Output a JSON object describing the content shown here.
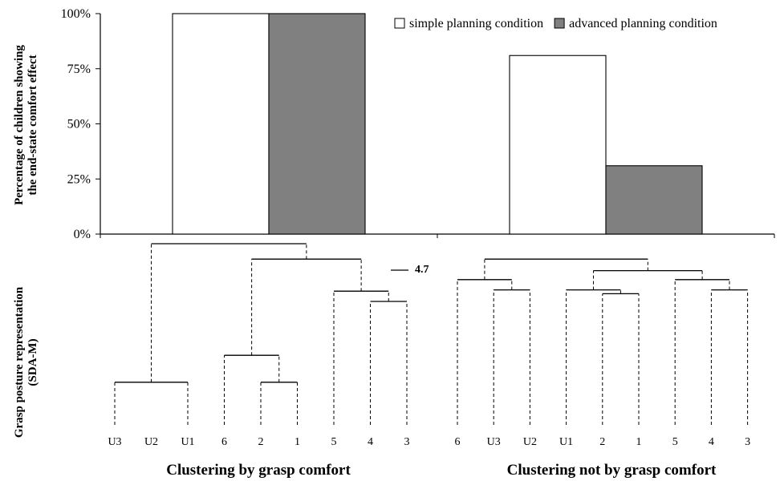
{
  "chart_data": [
    {
      "type": "bar",
      "categories": [
        "Clustering by grasp comfort",
        "Clustering not by grasp comfort"
      ],
      "series": [
        {
          "name": "simple planning condition",
          "color": "#ffffff",
          "values": [
            100,
            81
          ]
        },
        {
          "name": "advanced planning condition",
          "color": "#808080",
          "values": [
            100,
            31
          ]
        }
      ],
      "ylabel_lines": [
        "Percentage of children showing",
        "the end-state comfort effect"
      ],
      "yticks": [
        "0%",
        "25%",
        "50%",
        "75%",
        "100%"
      ],
      "ylim": [
        0,
        100
      ],
      "legend_position": "top-right",
      "grid": false
    },
    {
      "type": "dendrogram",
      "ylabel_lines": [
        "Grasp posture representation",
        "(SDA-M)"
      ],
      "threshold_label": "4.7",
      "panels": [
        {
          "title": "Clustering by grasp comfort",
          "leaves": [
            "U3",
            "U2",
            "U1",
            "6",
            "2",
            "1",
            "5",
            "4",
            "3"
          ],
          "merges": [
            {
              "a": 4,
              "b": 5,
              "h": 0.22
            },
            {
              "a": 0,
              "b": 2,
              "h": 0.22
            },
            {
              "a": 3,
              "b": 4.5,
              "h": 0.43
            },
            {
              "a": 7,
              "b": 8,
              "h": 0.85
            },
            {
              "a": 6,
              "b": 7.5,
              "h": 0.93
            },
            {
              "a": 3.75,
              "b": 6.75,
              "h": 1.18
            },
            {
              "a": 1,
              "b": 5.25,
              "h": 1.3
            }
          ]
        },
        {
          "title": "Clustering not by grasp comfort",
          "leaves": [
            "6",
            "U3",
            "U2",
            "U1",
            "2",
            "1",
            "5",
            "4",
            "3"
          ],
          "merges": [
            {
              "a": 4,
              "b": 5,
              "h": 0.91
            },
            {
              "a": 1,
              "b": 2,
              "h": 0.94
            },
            {
              "a": 7,
              "b": 8,
              "h": 0.94
            },
            {
              "a": 3,
              "b": 4.5,
              "h": 0.94
            },
            {
              "a": 0,
              "b": 1.5,
              "h": 1.02
            },
            {
              "a": 6,
              "b": 7.5,
              "h": 1.02
            },
            {
              "a": 3.75,
              "b": 6.75,
              "h": 1.09
            },
            {
              "a": 0.75,
              "b": 5.25,
              "h": 1.18
            }
          ]
        }
      ]
    }
  ]
}
